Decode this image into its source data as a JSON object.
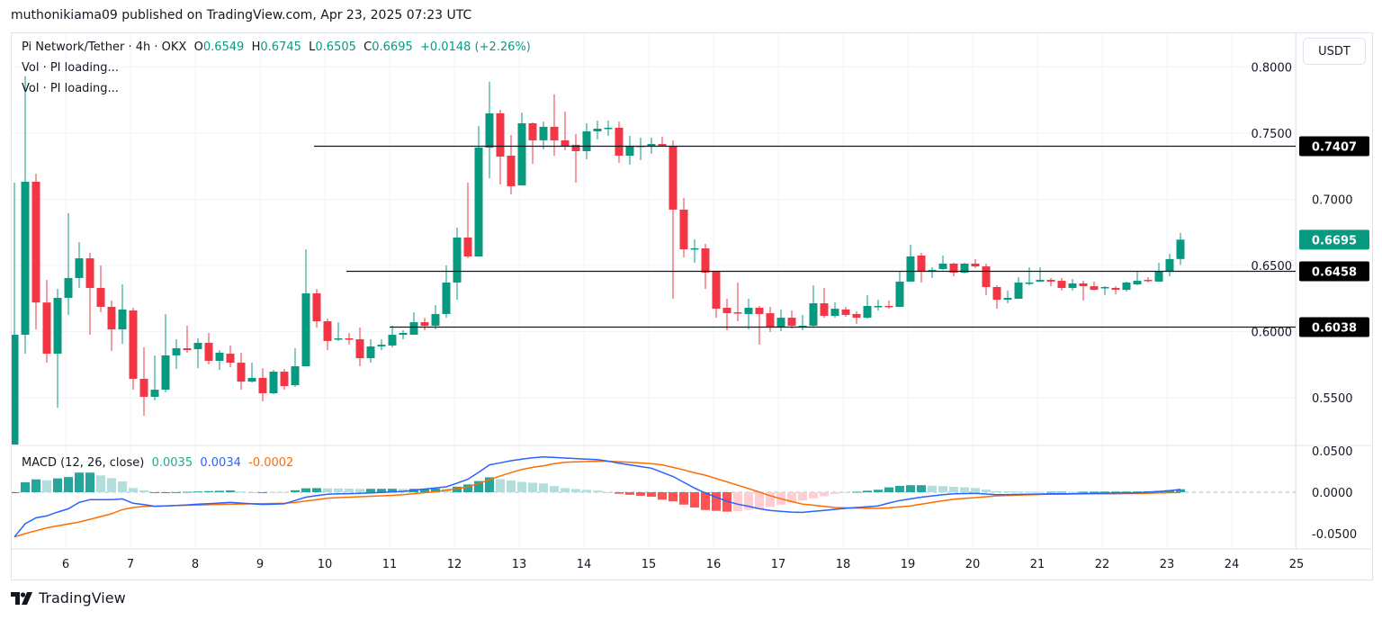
{
  "header": {
    "publisher_line": "muthonikiama09 published on TradingView.com, Apr 23, 2025 07:23 UTC"
  },
  "legend": {
    "symbol": "Pi Network/Tether · 4h · OKX",
    "open_label": "O",
    "open": "0.6549",
    "high_label": "H",
    "high": "0.6745",
    "low_label": "L",
    "low": "0.6505",
    "close_label": "C",
    "close": "0.6695",
    "change": "+0.0148 (+2.26%)",
    "vol_lines": [
      "Vol · PI loading...",
      "Vol · PI loading..."
    ]
  },
  "currency_button": "USDT",
  "macd_legend": {
    "title": "MACD (12, 26, close)",
    "histogram": "0.0035",
    "macd": "0.0034",
    "signal": "-0.0002"
  },
  "footer": {
    "brand": "TradingView"
  },
  "colors": {
    "up": "#089981",
    "down": "#f23645",
    "macd": "#2962ff",
    "signal": "#ff6d00",
    "hist_up_strong": "#26a69a",
    "hist_up_weak": "#b2dfdb",
    "hist_down_strong": "#ff5252",
    "hist_down_weak": "#ffcdd2",
    "level_label_bg": "#000000",
    "last_price_bg": "#089981"
  },
  "chart_data": [
    {
      "type": "candlestick",
      "interval": "4h",
      "y_axis_ticks": [
        "0.8000",
        "0.7500",
        "0.7000",
        "0.6500",
        "0.6000",
        "0.5500"
      ],
      "x_axis_ticks": [
        "6",
        "7",
        "8",
        "9",
        "10",
        "11",
        "12",
        "13",
        "14",
        "15",
        "16",
        "17",
        "18",
        "19",
        "20",
        "21",
        "22",
        "23",
        "24",
        "25"
      ],
      "ylim": [
        0.5,
        0.81
      ],
      "grid": true,
      "last_price_label": "0.6695",
      "horizontal_levels": [
        {
          "value": 0.7407,
          "label": "0.7407"
        },
        {
          "value": 0.6458,
          "label": "0.6458"
        },
        {
          "value": 0.6038,
          "label": "0.6038"
        }
      ],
      "candles_columns": [
        "time",
        "open",
        "high",
        "low",
        "close"
      ],
      "candles": [
        [
          "Apr 5 04:00",
          0.5,
          0.7126,
          0.49,
          0.5976
        ],
        [
          "Apr 5 08:00",
          0.5976,
          0.793,
          0.5833,
          0.7133
        ],
        [
          "Apr 5 12:00",
          0.7133,
          0.7194,
          0.6017,
          0.622
        ],
        [
          "Apr 5 16:00",
          0.622,
          0.639,
          0.5765,
          0.5833
        ],
        [
          "Apr 5 20:00",
          0.5833,
          0.6323,
          0.5425,
          0.6255
        ],
        [
          "Apr 6 00:00",
          0.6255,
          0.6895,
          0.6126,
          0.6405
        ],
        [
          "Apr 6 04:00",
          0.6405,
          0.6677,
          0.633,
          0.6554
        ],
        [
          "Apr 6 08:00",
          0.6554,
          0.6595,
          0.5976,
          0.633
        ],
        [
          "Apr 6 12:00",
          0.633,
          0.65,
          0.6146,
          0.6187
        ],
        [
          "Apr 6 16:00",
          0.6187,
          0.6235,
          0.5854,
          0.6017
        ],
        [
          "Apr 6 20:00",
          0.6017,
          0.6357,
          0.5908,
          0.6167
        ],
        [
          "Apr 7 00:00",
          0.616,
          0.618,
          0.5561,
          0.5643
        ],
        [
          "Apr 7 04:00",
          0.5643,
          0.5881,
          0.5364,
          0.5507
        ],
        [
          "Apr 7 08:00",
          0.5507,
          0.582,
          0.548,
          0.5561
        ],
        [
          "Apr 7 12:00",
          0.5561,
          0.6133,
          0.5541,
          0.582
        ],
        [
          "Apr 7 16:00",
          0.582,
          0.5942,
          0.5718,
          0.5874
        ],
        [
          "Apr 7 20:00",
          0.5874,
          0.6044,
          0.584,
          0.586
        ],
        [
          "Apr 8 00:00",
          0.5867,
          0.5949,
          0.5724,
          0.5915
        ],
        [
          "Apr 8 04:00",
          0.5915,
          0.599,
          0.5752,
          0.5779
        ],
        [
          "Apr 8 08:00",
          0.5779,
          0.586,
          0.5711,
          0.584
        ],
        [
          "Apr 8 12:00",
          0.5833,
          0.5895,
          0.5731,
          0.5765
        ],
        [
          "Apr 8 16:00",
          0.5765,
          0.584,
          0.5561,
          0.5622
        ],
        [
          "Apr 8 20:00",
          0.5622,
          0.5765,
          0.5616,
          0.565
        ],
        [
          "Apr 9 00:00",
          0.565,
          0.5724,
          0.5473,
          0.5534
        ],
        [
          "Apr 9 04:00",
          0.5534,
          0.5711,
          0.5527,
          0.5697
        ],
        [
          "Apr 9 08:00",
          0.5697,
          0.5718,
          0.5561,
          0.5588
        ],
        [
          "Apr 9 12:00",
          0.5595,
          0.5874,
          0.5582,
          0.5738
        ],
        [
          "Apr 9 16:00",
          0.5738,
          0.6622,
          0.5738,
          0.6289
        ],
        [
          "Apr 9 20:00",
          0.6289,
          0.6323,
          0.603,
          0.6078
        ],
        [
          "Apr 10 00:00",
          0.6078,
          0.6099,
          0.586,
          0.5929
        ],
        [
          "Apr 10 04:00",
          0.5942,
          0.6071,
          0.5929,
          0.5949
        ],
        [
          "Apr 10 08:00",
          0.5949,
          0.599,
          0.5901,
          0.5942
        ],
        [
          "Apr 10 12:00",
          0.5942,
          0.6031,
          0.5738,
          0.5799
        ],
        [
          "Apr 10 16:00",
          0.5799,
          0.5942,
          0.5765,
          0.5888
        ],
        [
          "Apr 10 20:00",
          0.5888,
          0.5942,
          0.586,
          0.5901
        ],
        [
          "Apr 11 00:00",
          0.5895,
          0.6044,
          0.5881,
          0.5976
        ],
        [
          "Apr 11 04:00",
          0.5976,
          0.601,
          0.5942,
          0.599
        ],
        [
          "Apr 11 08:00",
          0.5976,
          0.6146,
          0.5976,
          0.6071
        ],
        [
          "Apr 11 12:00",
          0.6071,
          0.6105,
          0.601,
          0.6044
        ],
        [
          "Apr 11 16:00",
          0.6044,
          0.6201,
          0.6017,
          0.6133
        ],
        [
          "Apr 11 20:00",
          0.6133,
          0.65,
          0.6105,
          0.6371
        ],
        [
          "Apr 12 00:00",
          0.6371,
          0.6786,
          0.6241,
          0.6711
        ],
        [
          "Apr 12 04:00",
          0.6711,
          0.7126,
          0.6554,
          0.6568
        ],
        [
          "Apr 12 08:00",
          0.6568,
          0.7554,
          0.6568,
          0.7391
        ],
        [
          "Apr 12 12:00",
          0.7391,
          0.7888,
          0.716,
          0.765
        ],
        [
          "Apr 12 16:00",
          0.765,
          0.7677,
          0.7112,
          0.7323
        ],
        [
          "Apr 12 20:00",
          0.733,
          0.7486,
          0.7037,
          0.7099
        ],
        [
          "Apr 13 00:00",
          0.7105,
          0.7656,
          0.7105,
          0.7575
        ],
        [
          "Apr 13 04:00",
          0.7575,
          0.7582,
          0.7269,
          0.7446
        ],
        [
          "Apr 13 08:00",
          0.7446,
          0.7588,
          0.7378,
          0.7548
        ],
        [
          "Apr 13 12:00",
          0.7548,
          0.7793,
          0.733,
          0.7446
        ],
        [
          "Apr 13 16:00",
          0.7446,
          0.7663,
          0.7371,
          0.7405
        ],
        [
          "Apr 13 20:00",
          0.7412,
          0.7493,
          0.7126,
          0.7364
        ],
        [
          "Apr 14 00:00",
          0.7364,
          0.7575,
          0.7303,
          0.7514
        ],
        [
          "Apr 14 04:00",
          0.7514,
          0.7595,
          0.7452,
          0.7534
        ],
        [
          "Apr 14 08:00",
          0.7534,
          0.7595,
          0.748,
          0.7541
        ],
        [
          "Apr 14 12:00",
          0.7541,
          0.7588,
          0.7276,
          0.733
        ],
        [
          "Apr 14 16:00",
          0.733,
          0.748,
          0.7262,
          0.7398
        ],
        [
          "Apr 14 20:00",
          0.7398,
          0.7466,
          0.7296,
          0.7405
        ],
        [
          "Apr 15 00:00",
          0.7398,
          0.7466,
          0.7344,
          0.7418
        ],
        [
          "Apr 15 04:00",
          0.7418,
          0.7473,
          0.7398,
          0.7405
        ],
        [
          "Apr 15 08:00",
          0.7405,
          0.7446,
          0.6248,
          0.6922
        ],
        [
          "Apr 15 12:00",
          0.6922,
          0.701,
          0.6561,
          0.6622
        ],
        [
          "Apr 15 16:00",
          0.6622,
          0.6697,
          0.652,
          0.663
        ],
        [
          "Apr 15 20:00",
          0.6629,
          0.6663,
          0.6323,
          0.6446
        ],
        [
          "Apr 16 00:00",
          0.6452,
          0.6452,
          0.6105,
          0.6173
        ],
        [
          "Apr 16 04:00",
          0.618,
          0.6248,
          0.601,
          0.6139
        ],
        [
          "Apr 16 08:00",
          0.6146,
          0.6371,
          0.6078,
          0.6139
        ],
        [
          "Apr 16 12:00",
          0.6133,
          0.6248,
          0.6017,
          0.618
        ],
        [
          "Apr 16 16:00",
          0.618,
          0.6194,
          0.5901,
          0.6133
        ],
        [
          "Apr 16 20:00",
          0.6139,
          0.6187,
          0.5997,
          0.6037
        ],
        [
          "Apr 17 00:00",
          0.6037,
          0.6167,
          0.6003,
          0.6105
        ],
        [
          "Apr 17 04:00",
          0.6105,
          0.616,
          0.6024,
          0.6044
        ],
        [
          "Apr 17 08:00",
          0.6037,
          0.6126,
          0.601,
          0.6044
        ],
        [
          "Apr 17 12:00",
          0.6044,
          0.635,
          0.603,
          0.6214
        ],
        [
          "Apr 17 16:00",
          0.6214,
          0.633,
          0.6105,
          0.6119
        ],
        [
          "Apr 17 20:00",
          0.6119,
          0.6221,
          0.6105,
          0.6173
        ],
        [
          "Apr 18 00:00",
          0.6167,
          0.6187,
          0.6112,
          0.6126
        ],
        [
          "Apr 18 04:00",
          0.6133,
          0.6153,
          0.6058,
          0.6105
        ],
        [
          "Apr 18 08:00",
          0.6105,
          0.6276,
          0.6099,
          0.6194
        ],
        [
          "Apr 18 12:00",
          0.6187,
          0.6241,
          0.616,
          0.6194
        ],
        [
          "Apr 18 16:00",
          0.6194,
          0.6235,
          0.6173,
          0.6187
        ],
        [
          "Apr 18 20:00",
          0.6187,
          0.6452,
          0.6187,
          0.6378
        ],
        [
          "Apr 19 00:00",
          0.6378,
          0.6656,
          0.6378,
          0.6568
        ],
        [
          "Apr 19 04:00",
          0.6575,
          0.6595,
          0.6371,
          0.6452
        ],
        [
          "Apr 19 08:00",
          0.6452,
          0.6486,
          0.6405,
          0.6466
        ],
        [
          "Apr 19 12:00",
          0.6473,
          0.6575,
          0.6466,
          0.6514
        ],
        [
          "Apr 19 16:00",
          0.6514,
          0.652,
          0.6418,
          0.6446
        ],
        [
          "Apr 19 20:00",
          0.6446,
          0.652,
          0.644,
          0.6514
        ],
        [
          "Apr 20 00:00",
          0.6514,
          0.6548,
          0.648,
          0.6493
        ],
        [
          "Apr 20 04:00",
          0.6493,
          0.6514,
          0.6276,
          0.6337
        ],
        [
          "Apr 20 08:00",
          0.6337,
          0.635,
          0.6173,
          0.6241
        ],
        [
          "Apr 20 12:00",
          0.6241,
          0.631,
          0.6214,
          0.6255
        ],
        [
          "Apr 20 16:00",
          0.6248,
          0.6412,
          0.6248,
          0.6371
        ],
        [
          "Apr 20 20:00",
          0.6364,
          0.6486,
          0.635,
          0.6371
        ],
        [
          "Apr 21 00:00",
          0.6378,
          0.6486,
          0.6378,
          0.6391
        ],
        [
          "Apr 21 04:00",
          0.6391,
          0.6405,
          0.6343,
          0.6378
        ],
        [
          "Apr 21 08:00",
          0.6384,
          0.6405,
          0.631,
          0.633
        ],
        [
          "Apr 21 12:00",
          0.633,
          0.6398,
          0.631,
          0.6364
        ],
        [
          "Apr 21 16:00",
          0.6364,
          0.6384,
          0.6235,
          0.6343
        ],
        [
          "Apr 21 20:00",
          0.6343,
          0.6378,
          0.631,
          0.6316
        ],
        [
          "Apr 22 00:00",
          0.633,
          0.6343,
          0.6276,
          0.6337
        ],
        [
          "Apr 22 04:00",
          0.633,
          0.6343,
          0.6282,
          0.6316
        ],
        [
          "Apr 22 08:00",
          0.6316,
          0.6378,
          0.6303,
          0.6371
        ],
        [
          "Apr 22 12:00",
          0.6357,
          0.6452,
          0.635,
          0.6384
        ],
        [
          "Apr 22 16:00",
          0.6391,
          0.6412,
          0.6371,
          0.6384
        ],
        [
          "Apr 22 20:00",
          0.6378,
          0.652,
          0.6378,
          0.6459
        ],
        [
          "Apr 23 00:00",
          0.6452,
          0.6588,
          0.6418,
          0.6548
        ],
        [
          "Apr 23 04:00",
          0.6549,
          0.6745,
          0.6505,
          0.6695
        ]
      ]
    },
    {
      "type": "line+bar",
      "title": "MACD (12, 26, close)",
      "y_axis_ticks": [
        "0.0500",
        "0.0000",
        "-0.0500"
      ],
      "ylim": [
        -0.06,
        0.055
      ],
      "macd": [
        -0.054,
        -0.038,
        -0.031,
        -0.0286,
        -0.024,
        -0.02,
        -0.0123,
        -0.009,
        -0.009,
        -0.009,
        -0.008,
        -0.0134,
        -0.015,
        -0.017,
        -0.0165,
        -0.016,
        -0.0153,
        -0.0145,
        -0.0138,
        -0.013,
        -0.0123,
        -0.0132,
        -0.014,
        -0.0148,
        -0.0144,
        -0.014,
        -0.01,
        -0.006,
        -0.004,
        -0.0025,
        -0.002,
        -0.0017,
        -0.0014,
        -0.0008,
        -0.0002,
        0.0004,
        0.001,
        0.0024,
        0.0038,
        0.0051,
        0.0065,
        0.011,
        0.0156,
        0.024,
        0.033,
        0.0355,
        0.038,
        0.04,
        0.0415,
        0.0427,
        0.042,
        0.0413,
        0.0406,
        0.04,
        0.0395,
        0.0375,
        0.035,
        0.033,
        0.031,
        0.029,
        0.024,
        0.019,
        0.012,
        0.005,
        -0.001,
        -0.006,
        -0.011,
        -0.0145,
        -0.017,
        -0.02,
        -0.022,
        -0.023,
        -0.024,
        -0.0243,
        -0.023,
        -0.022,
        -0.0206,
        -0.0195,
        -0.0185,
        -0.0175,
        -0.0165,
        -0.013,
        -0.01,
        -0.008,
        -0.006,
        -0.0045,
        -0.003,
        -0.002,
        -0.0016,
        -0.0014,
        -0.0022,
        -0.003,
        -0.0028,
        -0.0026,
        -0.0024,
        -0.0022,
        -0.002,
        -0.0018,
        -0.0017,
        -0.0015,
        -0.0013,
        -0.0011,
        -0.001,
        -0.0008,
        -0.0006,
        0.0,
        0.0008,
        0.002,
        0.0034
      ],
      "signal": [
        -0.054,
        -0.05,
        -0.0465,
        -0.043,
        -0.0407,
        -0.0383,
        -0.036,
        -0.0327,
        -0.0293,
        -0.026,
        -0.021,
        -0.0185,
        -0.0172,
        -0.0168,
        -0.0165,
        -0.0161,
        -0.0158,
        -0.0154,
        -0.0151,
        -0.0147,
        -0.0144,
        -0.0142,
        -0.014,
        -0.0138,
        -0.0136,
        -0.0134,
        -0.0124,
        -0.0107,
        -0.009,
        -0.0072,
        -0.0065,
        -0.006,
        -0.0054,
        -0.0049,
        -0.0043,
        -0.0038,
        -0.003,
        -0.0017,
        -0.0005,
        0.0007,
        0.0023,
        0.0043,
        0.0062,
        0.0105,
        0.015,
        0.0197,
        0.0237,
        0.0275,
        0.03,
        0.032,
        0.0345,
        0.0362,
        0.0367,
        0.0371,
        0.0375,
        0.0374,
        0.0368,
        0.0361,
        0.0353,
        0.0345,
        0.033,
        0.03,
        0.027,
        0.0235,
        0.0205,
        0.0165,
        0.0125,
        0.0085,
        0.0043,
        0.0001,
        -0.0042,
        -0.0079,
        -0.0113,
        -0.0143,
        -0.0157,
        -0.0171,
        -0.0185,
        -0.0189,
        -0.0191,
        -0.0193,
        -0.0195,
        -0.0189,
        -0.0177,
        -0.0165,
        -0.0145,
        -0.0124,
        -0.0103,
        -0.0085,
        -0.0075,
        -0.0065,
        -0.0054,
        -0.0043,
        -0.0039,
        -0.0035,
        -0.0031,
        -0.0027,
        -0.0025,
        -0.0024,
        -0.0022,
        -0.0021,
        -0.002,
        -0.0019,
        -0.0018,
        -0.0016,
        -0.0015,
        -0.0012,
        -0.0009,
        -0.0005,
        -0.0002
      ]
    }
  ]
}
